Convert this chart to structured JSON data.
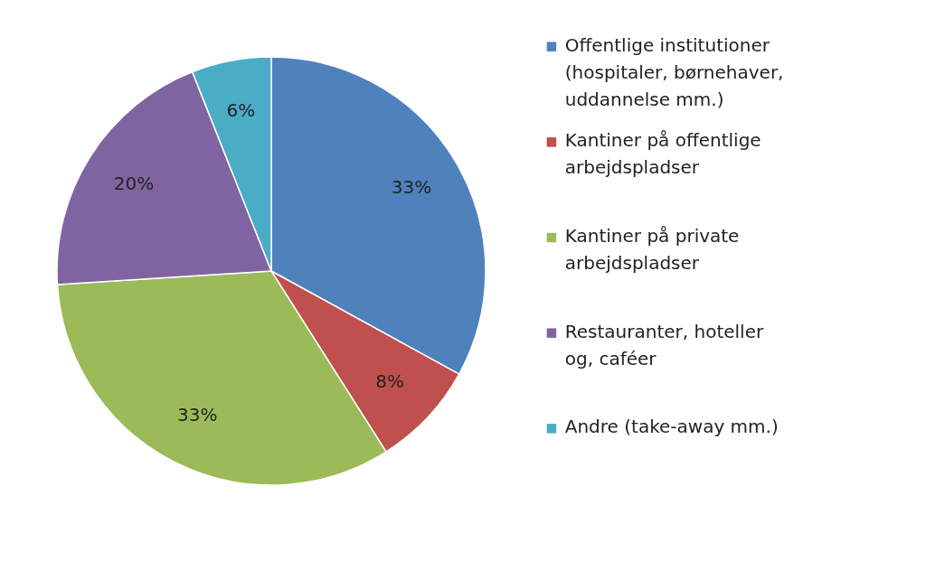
{
  "chart_data": {
    "type": "pie",
    "categories": [
      "Offentlige institutioner (hospitaler, børnehaver, uddannelse mm.)",
      "Kantiner på offentlige arbejdspladser",
      "Kantiner på private arbejdspladser",
      "Restauranter, hoteller og, caféer",
      "Andre (take-away mm.)"
    ],
    "values": [
      33,
      8,
      33,
      20,
      6
    ],
    "colors": [
      "#4f81bd",
      "#c0504d",
      "#9bbb59",
      "#8064a2",
      "#4bacc6"
    ],
    "value_labels": [
      "33%",
      "8%",
      "33%",
      "20%",
      "6%"
    ],
    "legend": "right"
  }
}
